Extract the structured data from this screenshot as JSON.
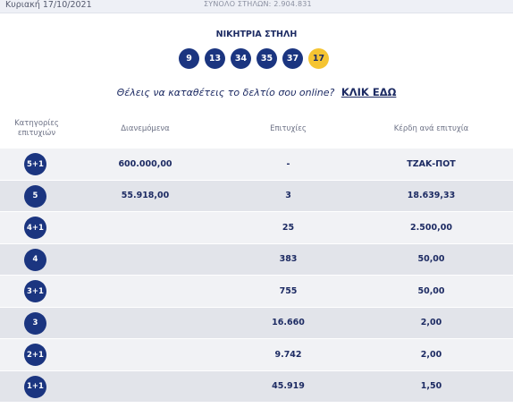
{
  "header": {
    "date": "Κυριακή 17/10/2021",
    "total_columns": "ΣΥΝΟΛΟ ΣΤΗΛΩΝ: 2.904.831"
  },
  "winning": {
    "label": "ΝΙΚΗΤΡΙΑ ΣΤΗΛΗ",
    "numbers": [
      "9",
      "13",
      "34",
      "35",
      "37"
    ],
    "joker": "17"
  },
  "cta": {
    "question": "Θέλεις να καταθέτεις το δελτίο σου online?",
    "link": "ΚΛΙΚ ΕΔΩ"
  },
  "table": {
    "headers": [
      "Κατηγορίες επιτυχιών",
      "Διανεμόμενα",
      "Επιτυχίες",
      "Κέρδη ανά επιτυχία"
    ],
    "rows": [
      {
        "category": "5+1",
        "distributed": "600.000,00",
        "winners": "-",
        "prize": "ΤΖΑΚ-ΠΟΤ"
      },
      {
        "category": "5",
        "distributed": "55.918,00",
        "winners": "3",
        "prize": "18.639,33"
      },
      {
        "category": "4+1",
        "distributed": "",
        "winners": "25",
        "prize": "2.500,00"
      },
      {
        "category": "4",
        "distributed": "",
        "winners": "383",
        "prize": "50,00"
      },
      {
        "category": "3+1",
        "distributed": "",
        "winners": "755",
        "prize": "50,00"
      },
      {
        "category": "3",
        "distributed": "",
        "winners": "16.660",
        "prize": "2,00"
      },
      {
        "category": "2+1",
        "distributed": "",
        "winners": "9.742",
        "prize": "2,00"
      },
      {
        "category": "1+1",
        "distributed": "",
        "winners": "45.919",
        "prize": "1,50"
      }
    ]
  },
  "colors": {
    "ball": "#1b3580",
    "joker_ball": "#f5c431",
    "row_alt": "#e2e4ea",
    "row_plain": "#f1f2f5",
    "text": "#1d2b63"
  }
}
